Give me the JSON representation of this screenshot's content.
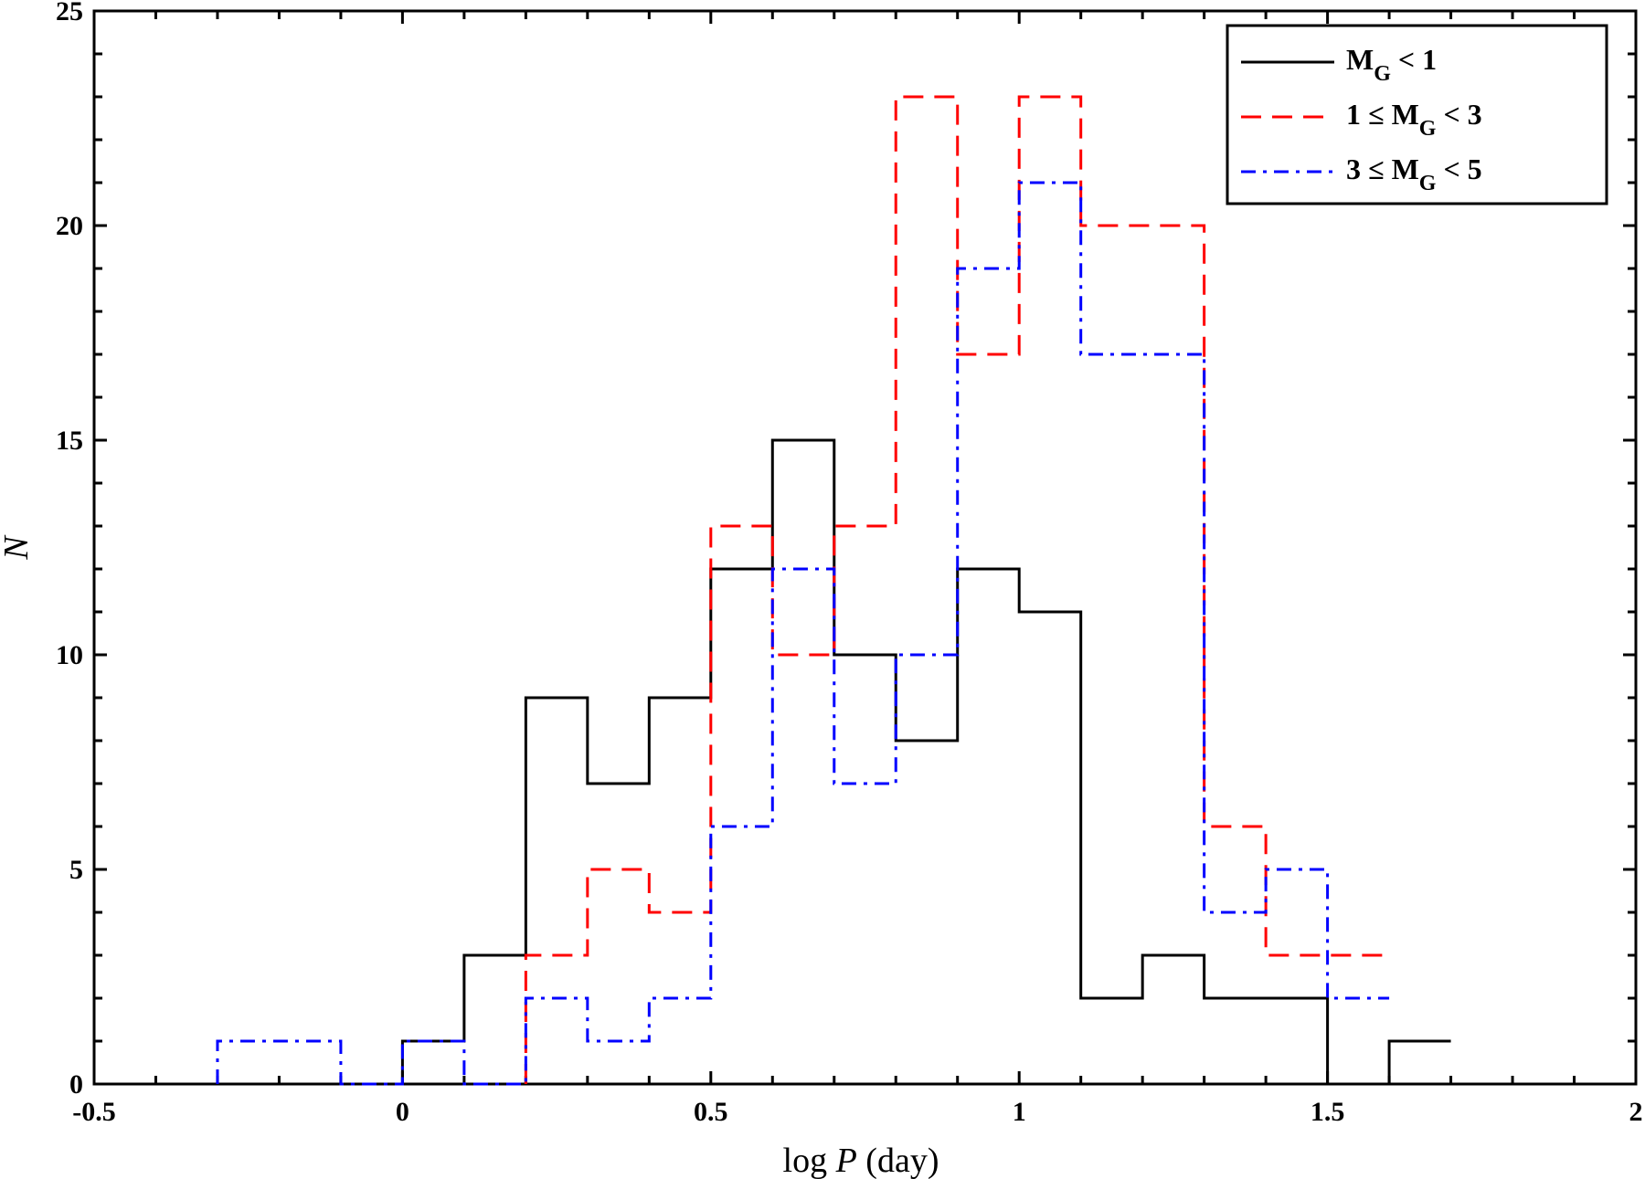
{
  "chart_data": {
    "type": "histogram-step",
    "xlabel": "log P (day)",
    "ylabel": "N",
    "xlim": [
      -0.5,
      2
    ],
    "ylim": [
      0,
      25
    ],
    "xticks": [
      -0.5,
      0,
      0.5,
      1,
      1.5,
      2
    ],
    "xtick_labels": [
      "-0.5",
      "0",
      "0.5",
      "1",
      "1.5",
      "2"
    ],
    "yticks": [
      0,
      5,
      10,
      15,
      20,
      25
    ],
    "ytick_labels": [
      "0",
      "5",
      "10",
      "15",
      "20",
      "25"
    ],
    "grid": false,
    "legend_position": "top-right",
    "series": [
      {
        "name": "M_G < 1",
        "legend_label": "M",
        "legend_sub": "G",
        "legend_suffix": " < 1",
        "legend_prefix": "",
        "color": "#000000",
        "style": "solid",
        "bin_edges": [
          0.0,
          0.1,
          0.2,
          0.3,
          0.4,
          0.5,
          0.6,
          0.7,
          0.8,
          0.9,
          1.0,
          1.1,
          1.2,
          1.3,
          1.4,
          1.5,
          1.6,
          1.7
        ],
        "counts": [
          1,
          3,
          9,
          7,
          9,
          12,
          15,
          10,
          8,
          12,
          11,
          2,
          3,
          2,
          2,
          0,
          1
        ]
      },
      {
        "name": "1 ≤ M_G < 3",
        "legend_prefix": "1 ≤ ",
        "legend_label": "M",
        "legend_sub": "G",
        "legend_suffix": " < 3",
        "color": "#ff0000",
        "style": "dashed",
        "bin_edges": [
          0.2,
          0.3,
          0.4,
          0.5,
          0.6,
          0.7,
          0.8,
          0.9,
          1.0,
          1.1,
          1.2,
          1.3,
          1.4,
          1.5,
          1.6
        ],
        "counts": [
          3,
          5,
          4,
          13,
          10,
          13,
          23,
          17,
          23,
          20,
          20,
          6,
          3,
          3
        ]
      },
      {
        "name": "3 ≤ M_G < 5",
        "legend_prefix": "3 ≤ ",
        "legend_label": "M",
        "legend_sub": "G",
        "legend_suffix": " < 5",
        "color": "#0000ff",
        "style": "dashdot",
        "bin_edges": [
          -0.3,
          -0.2,
          -0.1,
          0.0,
          0.1,
          0.2,
          0.3,
          0.4,
          0.5,
          0.6,
          0.7,
          0.8,
          0.9,
          1.0,
          1.1,
          1.2,
          1.3,
          1.4,
          1.5,
          1.6
        ],
        "counts": [
          1,
          1,
          0,
          1,
          0,
          2,
          1,
          2,
          6,
          12,
          7,
          10,
          19,
          21,
          17,
          17,
          4,
          5,
          2
        ]
      }
    ]
  }
}
